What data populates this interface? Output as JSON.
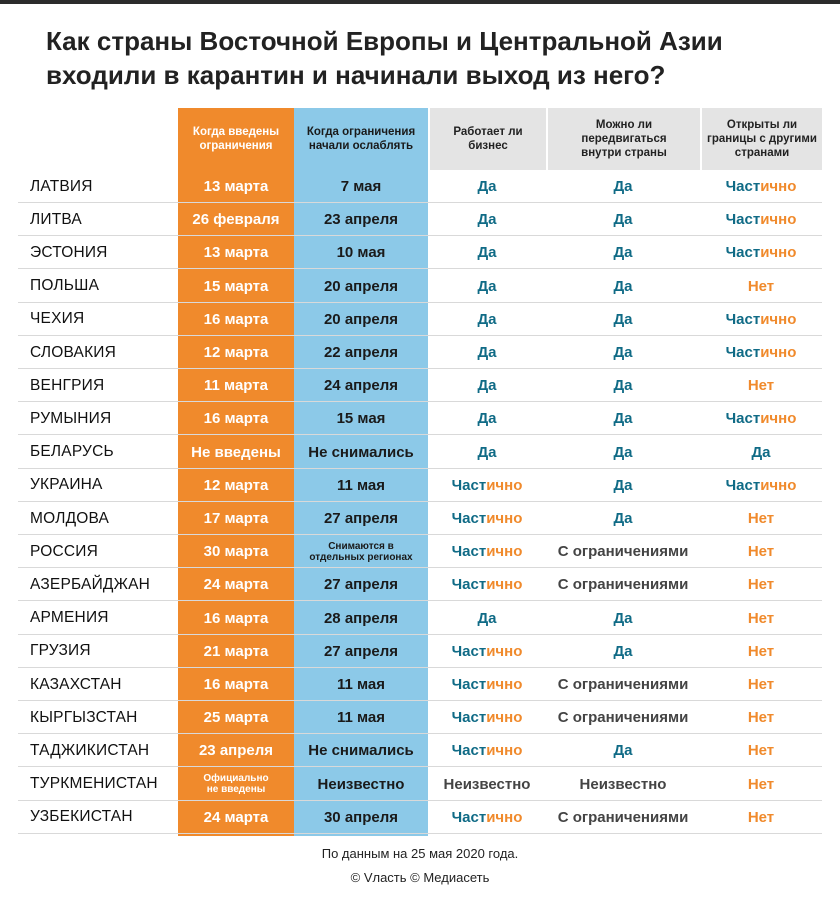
{
  "title": {
    "line1": "Как страны Восточной Европы и Центральной Азии",
    "line2": "входили в карантин и начинали выход из него?"
  },
  "colors": {
    "orange": "#f08a2c",
    "blue": "#8cc9e8",
    "teal": "#106b86",
    "header_gray": "#e4e4e4"
  },
  "chart_data": {
    "type": "table",
    "columns": [
      [
        "Когда введены",
        "ограничения"
      ],
      [
        "Когда ограничения",
        "начали ослаблять"
      ],
      [
        "Работает ли",
        "бизнес"
      ],
      [
        "Можно ли",
        "передвигаться",
        "внутри страны"
      ],
      [
        "Открыты ли",
        "границы с другими",
        "странами"
      ]
    ],
    "rows": [
      {
        "country": "ЛАТВИЯ",
        "start": [
          "13 марта"
        ],
        "ease": [
          "7 мая"
        ],
        "business": "Да",
        "movement": "Да",
        "borders": "Частично"
      },
      {
        "country": "ЛИТВА",
        "start": [
          "26 февраля"
        ],
        "ease": [
          "23 апреля"
        ],
        "business": "Да",
        "movement": "Да",
        "borders": "Частично"
      },
      {
        "country": "ЭСТОНИЯ",
        "start": [
          "13 марта"
        ],
        "ease": [
          "10 мая"
        ],
        "business": "Да",
        "movement": "Да",
        "borders": "Частично"
      },
      {
        "country": "ПОЛЬША",
        "start": [
          "15 марта"
        ],
        "ease": [
          "20 апреля"
        ],
        "business": "Да",
        "movement": "Да",
        "borders": "Нет"
      },
      {
        "country": "ЧЕХИЯ",
        "start": [
          "16 марта"
        ],
        "ease": [
          "20 апреля"
        ],
        "business": "Да",
        "movement": "Да",
        "borders": "Частично"
      },
      {
        "country": "СЛОВАКИЯ",
        "start": [
          "12 марта"
        ],
        "ease": [
          "22 апреля"
        ],
        "business": "Да",
        "movement": "Да",
        "borders": "Частично"
      },
      {
        "country": "ВЕНГРИЯ",
        "start": [
          "11 марта"
        ],
        "ease": [
          "24 апреля"
        ],
        "business": "Да",
        "movement": "Да",
        "borders": "Нет"
      },
      {
        "country": "РУМЫНИЯ",
        "start": [
          "16 марта"
        ],
        "ease": [
          "15 мая"
        ],
        "business": "Да",
        "movement": "Да",
        "borders": "Частично"
      },
      {
        "country": "БЕЛАРУСЬ",
        "start": [
          "Не введены"
        ],
        "ease": [
          "Не снимались"
        ],
        "business": "Да",
        "movement": "Да",
        "borders": "Да"
      },
      {
        "country": "УКРАИНА",
        "start": [
          "12 марта"
        ],
        "ease": [
          "11 мая"
        ],
        "business": "Частично",
        "movement": "Да",
        "borders": "Частично"
      },
      {
        "country": "МОЛДОВА",
        "start": [
          "17 марта"
        ],
        "ease": [
          "27 апреля"
        ],
        "business": "Частично",
        "movement": "Да",
        "borders": "Нет"
      },
      {
        "country": "РОССИЯ",
        "start": [
          "30 марта"
        ],
        "ease": [
          "Снимаются в",
          "отдельных регионах"
        ],
        "business": "Частично",
        "movement": "С ограничениями",
        "borders": "Нет"
      },
      {
        "country": "АЗЕРБАЙДЖАН",
        "start": [
          "24 марта"
        ],
        "ease": [
          "27 апреля"
        ],
        "business": "Частично",
        "movement": "С ограничениями",
        "borders": "Нет"
      },
      {
        "country": "АРМЕНИЯ",
        "start": [
          "16 марта"
        ],
        "ease": [
          "28 апреля"
        ],
        "business": "Да",
        "movement": "Да",
        "borders": "Нет"
      },
      {
        "country": "ГРУЗИЯ",
        "start": [
          "21 марта"
        ],
        "ease": [
          "27 апреля"
        ],
        "business": "Частично",
        "movement": "Да",
        "borders": "Нет"
      },
      {
        "country": "КАЗАХСТАН",
        "start": [
          "16 марта"
        ],
        "ease": [
          "11 мая"
        ],
        "business": "Частично",
        "movement": "С ограничениями",
        "borders": "Нет"
      },
      {
        "country": "КЫРГЫЗСТАН",
        "start": [
          "25 марта"
        ],
        "ease": [
          "11 мая"
        ],
        "business": "Частично",
        "movement": "С ограничениями",
        "borders": "Нет"
      },
      {
        "country": "ТАДЖИКИСТАН",
        "start": [
          "23 апреля"
        ],
        "ease": [
          "Не снимались"
        ],
        "business": "Частично",
        "movement": "Да",
        "borders": "Нет"
      },
      {
        "country": "ТУРКМЕНИСТАН",
        "start": [
          "Официально",
          "не введены"
        ],
        "ease": [
          "Неизвестно"
        ],
        "business": "Неизвестно",
        "movement": "Неизвестно",
        "borders": "Нет"
      },
      {
        "country": "УЗБЕКИСТАН",
        "start": [
          "24 марта"
        ],
        "ease": [
          "30 апреля"
        ],
        "business": "Частично",
        "movement": "С ограничениями",
        "borders": "Нет"
      }
    ]
  },
  "footer": {
    "note": "По данным на 25 мая 2020 года.",
    "credit": "© Vласть © Медиасеть"
  }
}
